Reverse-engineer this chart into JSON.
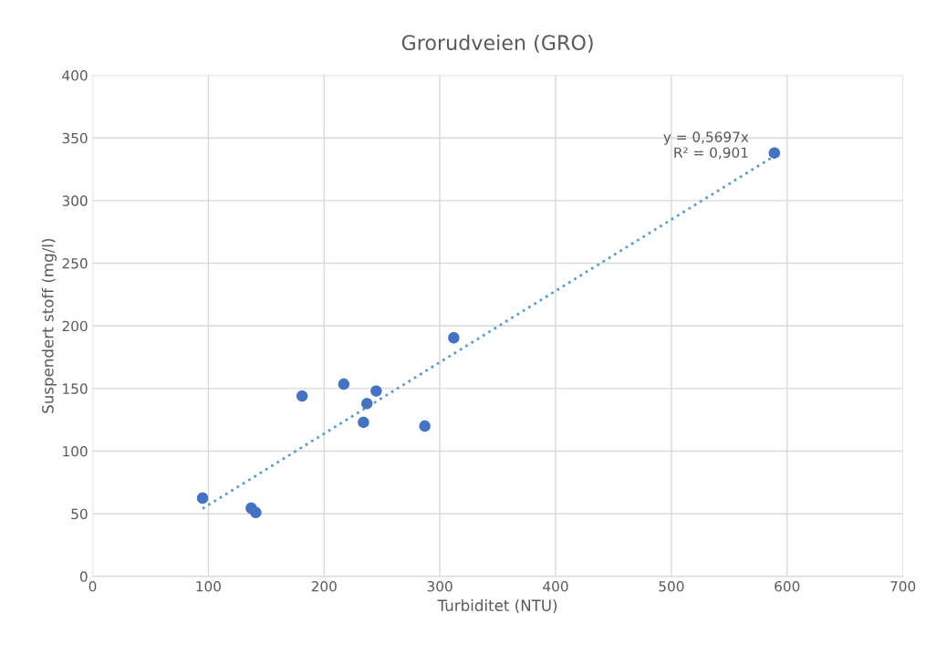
{
  "chart_data": {
    "type": "scatter",
    "title": "Grorudveien (GRO)",
    "xlabel": "Turbiditet (NTU)",
    "ylabel": "Suspendert stoff (mg/l)",
    "xlim": [
      0,
      700
    ],
    "xticks": [
      0,
      100,
      200,
      300,
      400,
      500,
      600,
      700
    ],
    "ylim": [
      0,
      400
    ],
    "yticks": [
      0,
      50,
      100,
      150,
      200,
      250,
      300,
      350,
      400
    ],
    "grid": true,
    "series": [
      {
        "marker": "circle",
        "color": "#4472c4",
        "x": [
          95,
          137,
          141,
          181,
          217,
          234,
          237,
          245,
          287,
          312,
          589
        ],
        "values": [
          62.5,
          54.5,
          51,
          144,
          153.5,
          123,
          138,
          148,
          120,
          190.5,
          338
        ]
      },
      {
        "type": "line",
        "color": "#5b9bd5",
        "line_style": "dotted",
        "x": [
          95,
          589
        ],
        "values": [
          54.1,
          335.6
        ]
      }
    ],
    "annotations": [
      "y = 0,5697x\nR² = 0,901"
    ]
  }
}
